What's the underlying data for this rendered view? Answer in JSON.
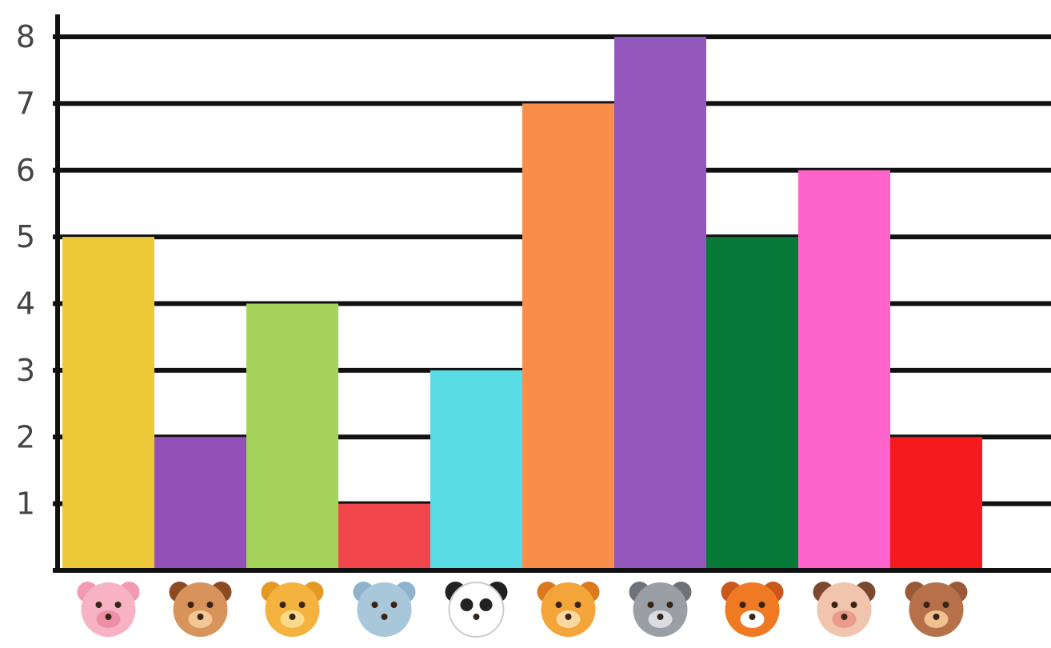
{
  "chart_data": {
    "type": "bar",
    "categories": [
      "pig",
      "dog",
      "giraffe",
      "elephant",
      "panda",
      "lion",
      "wolf",
      "tiger",
      "cow",
      "monkey"
    ],
    "values": [
      5,
      2,
      4,
      1,
      3,
      7,
      8,
      5,
      6,
      2
    ],
    "ylim": [
      0,
      8
    ],
    "yticks": [
      "1",
      "2",
      "3",
      "4",
      "5",
      "6",
      "7",
      "8"
    ],
    "grid": true,
    "title": "",
    "xlabel": "",
    "ylabel": "",
    "colors": [
      "#EDC93A",
      "#9351B7",
      "#A6D35C",
      "#F0454B",
      "#5ADCE6",
      "#F98E4B",
      "#9458BD",
      "#067A36",
      "#FF64CC",
      "#F41A1E"
    ],
    "category_icons": [
      "pig-face-icon",
      "dog-face-icon",
      "giraffe-face-icon",
      "elephant-face-icon",
      "panda-face-icon",
      "lion-face-icon",
      "wolf-face-icon",
      "tiger-face-icon",
      "cow-face-icon",
      "monkey-face-icon"
    ]
  }
}
